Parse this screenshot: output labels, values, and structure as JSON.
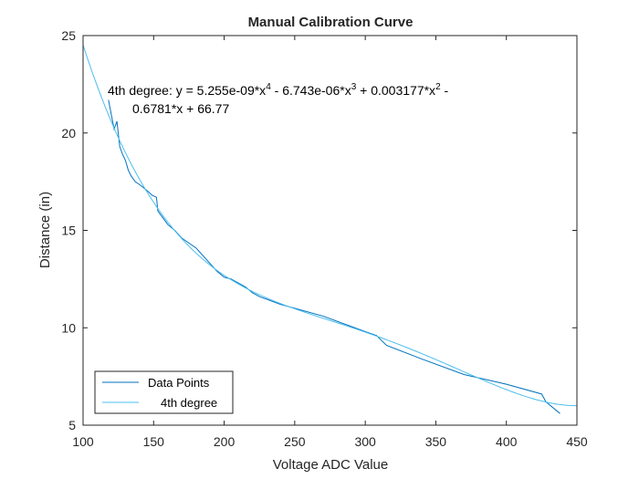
{
  "chart_data": {
    "type": "line",
    "title": "Manual Calibration Curve",
    "xlabel": "Voltage ADC Value",
    "ylabel": "Distance (in)",
    "xlim": [
      100,
      450
    ],
    "ylim": [
      5,
      25
    ],
    "xticks": [
      100,
      150,
      200,
      250,
      300,
      350,
      400,
      450
    ],
    "yticks": [
      5,
      10,
      15,
      20,
      25
    ],
    "xtick_labels": [
      "100",
      "150",
      "200",
      "250",
      "300",
      "350",
      "400",
      "450"
    ],
    "ytick_labels": [
      "5",
      "10",
      "15",
      "20",
      "25"
    ],
    "grid": false,
    "legend_position": "bottom-left",
    "series": [
      {
        "name": "Data Points",
        "color": "#0072BD",
        "x": [
          118,
          122,
          124,
          126,
          128,
          130,
          132,
          134,
          137,
          141,
          146,
          149,
          152,
          153,
          155,
          157,
          160,
          165,
          170,
          180,
          185,
          190,
          195,
          200,
          205,
          210,
          215,
          220,
          225,
          240,
          250,
          270,
          300,
          308,
          315,
          340,
          370,
          400,
          425,
          428,
          438
        ],
        "y": [
          21.7,
          20.2,
          20.6,
          19.3,
          18.9,
          18.6,
          18.1,
          17.8,
          17.5,
          17.3,
          17.0,
          16.8,
          16.7,
          16.0,
          15.8,
          15.6,
          15.3,
          15.0,
          14.6,
          14.1,
          13.7,
          13.3,
          12.9,
          12.6,
          12.5,
          12.3,
          12.1,
          11.8,
          11.6,
          11.2,
          11.0,
          10.6,
          9.8,
          9.6,
          9.1,
          8.4,
          7.6,
          7.1,
          6.6,
          6.2,
          5.6
        ]
      },
      {
        "name": "4th degree",
        "color": "#4DBEEE",
        "fit": "polynomial",
        "coefficients": [
          5.255e-09,
          -6.743e-06,
          0.003177,
          -0.6781,
          66.77
        ],
        "x_range": [
          100,
          450
        ]
      }
    ],
    "annotation": {
      "line1_prefix": "4th degree:  y = 5.255e-09*x",
      "line1_exp1": "4",
      "line1_mid1": " - 6.743e-06*x",
      "line1_exp2": "3",
      "line1_mid2": " + 0.003177*x",
      "line1_exp3": "2",
      "line1_suffix": " -",
      "line2": "0.6781*x + 66.77"
    }
  }
}
